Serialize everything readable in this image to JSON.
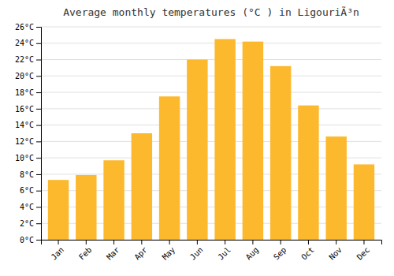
{
  "chart_data": {
    "type": "bar",
    "title": "Average monthly temperatures (°C ) in LigouriÃ³n",
    "categories": [
      "Jan",
      "Feb",
      "Mar",
      "Apr",
      "May",
      "Jun",
      "Jul",
      "Aug",
      "Sep",
      "Oct",
      "Nov",
      "Dec"
    ],
    "values": [
      7.3,
      7.9,
      9.7,
      13.0,
      17.5,
      22.0,
      24.5,
      24.2,
      21.2,
      16.4,
      12.6,
      9.2
    ],
    "color": "#FDB92E",
    "ylim": [
      0,
      26
    ],
    "yticks": [
      {
        "value": 0,
        "label": "0°C"
      },
      {
        "value": 2,
        "label": "2°C"
      },
      {
        "value": 4,
        "label": "4°C"
      },
      {
        "value": 6,
        "label": "6°C"
      },
      {
        "value": 8,
        "label": "8°C"
      },
      {
        "value": 10,
        "label": "10°C"
      },
      {
        "value": 12,
        "label": "12°C"
      },
      {
        "value": 14,
        "label": "14°C"
      },
      {
        "value": 16,
        "label": "16°C"
      },
      {
        "value": 18,
        "label": "18°C"
      },
      {
        "value": 20,
        "label": "20°C"
      },
      {
        "value": 22,
        "label": "22°C"
      },
      {
        "value": 24,
        "label": "24°C"
      },
      {
        "value": 26,
        "label": "26°C"
      }
    ],
    "grid": true
  }
}
